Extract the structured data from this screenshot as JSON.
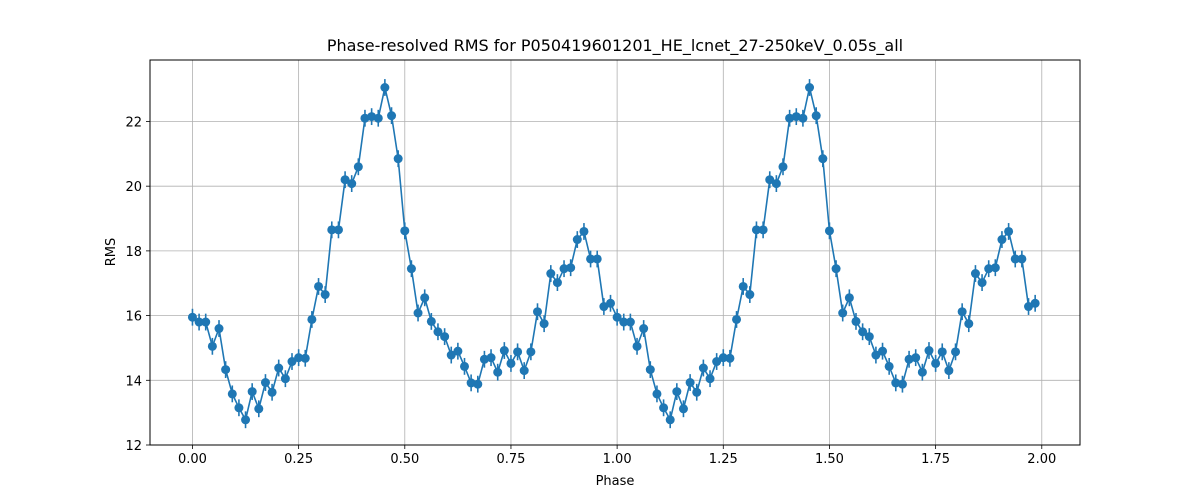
{
  "chart_data": {
    "type": "line",
    "title": "Phase-resolved RMS for P050419601201_HE_lcnet_27-250keV_0.05s_all",
    "xlabel": "Phase",
    "ylabel": "RMS",
    "xlim": [
      -0.1,
      2.09
    ],
    "ylim": [
      12,
      23.9
    ],
    "xticks": [
      0.0,
      0.25,
      0.5,
      0.75,
      1.0,
      1.25,
      1.5,
      1.75,
      2.0
    ],
    "xtick_labels": [
      "0.00",
      "0.25",
      "0.50",
      "0.75",
      "1.00",
      "1.25",
      "1.50",
      "1.75",
      "2.00"
    ],
    "yticks": [
      12,
      14,
      16,
      18,
      20,
      22
    ],
    "ytick_labels": [
      "12",
      "14",
      "16",
      "18",
      "20",
      "22"
    ],
    "grid": true,
    "color": "#1f77b4",
    "series": [
      {
        "x": [
          0.0,
          0.0156,
          0.0312,
          0.0469,
          0.0625,
          0.0781,
          0.0938,
          0.1094,
          0.125,
          0.1406,
          0.1562,
          0.1719,
          0.1875,
          0.2031,
          0.2188,
          0.2344,
          0.25,
          0.2656,
          0.2812,
          0.2969,
          0.3125,
          0.3281,
          0.3438,
          0.3594,
          0.375,
          0.3906,
          0.4062,
          0.4219,
          0.4375,
          0.4531,
          0.4688,
          0.4844,
          0.5,
          0.5156,
          0.5312,
          0.5469,
          0.5625,
          0.5781,
          0.5938,
          0.6094,
          0.625,
          0.6406,
          0.6562,
          0.6719,
          0.6875,
          0.7031,
          0.7188,
          0.7344,
          0.75,
          0.7656,
          0.7812,
          0.7969,
          0.8125,
          0.8281,
          0.8438,
          0.8594,
          0.875,
          0.8906,
          0.9062,
          0.9219,
          0.9375,
          0.9531,
          0.9688,
          0.9844,
          1.0,
          1.0156,
          1.0312,
          1.0469,
          1.0625,
          1.0781,
          1.0938,
          1.1094,
          1.125,
          1.1406,
          1.1562,
          1.1719,
          1.1875,
          1.2031,
          1.2188,
          1.2344,
          1.25,
          1.2656,
          1.2812,
          1.2969,
          1.3125,
          1.3281,
          1.3438,
          1.3594,
          1.375,
          1.3906,
          1.4062,
          1.4219,
          1.4375,
          1.4531,
          1.4688,
          1.4844,
          1.5,
          1.5156,
          1.5312,
          1.5469,
          1.5625,
          1.5781,
          1.5938,
          1.6094,
          1.625,
          1.6406,
          1.6562,
          1.6719,
          1.6875,
          1.7031,
          1.7188,
          1.7344,
          1.75,
          1.7656,
          1.7812,
          1.7969,
          1.8125,
          1.8281,
          1.8438,
          1.8594,
          1.875,
          1.8906,
          1.9062,
          1.9219,
          1.9375,
          1.9531,
          1.9688,
          1.9844
        ],
        "y": [
          15.95,
          15.8,
          15.8,
          15.05,
          15.6,
          14.33,
          13.58,
          13.15,
          12.78,
          13.65,
          13.12,
          13.93,
          13.63,
          14.38,
          14.05,
          14.58,
          14.7,
          14.68,
          15.88,
          16.9,
          16.65,
          18.65,
          18.65,
          20.2,
          20.08,
          20.6,
          22.1,
          22.15,
          22.1,
          23.05,
          22.18,
          20.85,
          18.62,
          17.45,
          16.08,
          16.55,
          15.82,
          15.5,
          15.35,
          14.78,
          14.9,
          14.43,
          13.92,
          13.88,
          14.65,
          14.7,
          14.25,
          14.92,
          14.52,
          14.88,
          14.3,
          14.88,
          16.12,
          15.75,
          17.3,
          17.02,
          17.45,
          17.48,
          18.35,
          18.6,
          17.75,
          17.75,
          16.28,
          16.38,
          15.95,
          15.8,
          15.8,
          15.05,
          15.6,
          14.33,
          13.58,
          13.15,
          12.78,
          13.65,
          13.12,
          13.93,
          13.63,
          14.38,
          14.05,
          14.58,
          14.7,
          14.68,
          15.88,
          16.9,
          16.65,
          18.65,
          18.65,
          20.2,
          20.08,
          20.6,
          22.1,
          22.15,
          22.1,
          23.05,
          22.18,
          20.85,
          18.62,
          17.45,
          16.08,
          16.55,
          15.82,
          15.5,
          15.35,
          14.78,
          14.9,
          14.43,
          13.92,
          13.88,
          14.65,
          14.7,
          14.25,
          14.92,
          14.52,
          14.88,
          14.3,
          14.88,
          16.12,
          15.75,
          17.3,
          17.02,
          17.45,
          17.48,
          18.35,
          18.6,
          17.75,
          17.75,
          16.28,
          16.38
        ],
        "yerr": 0.26
      }
    ]
  }
}
